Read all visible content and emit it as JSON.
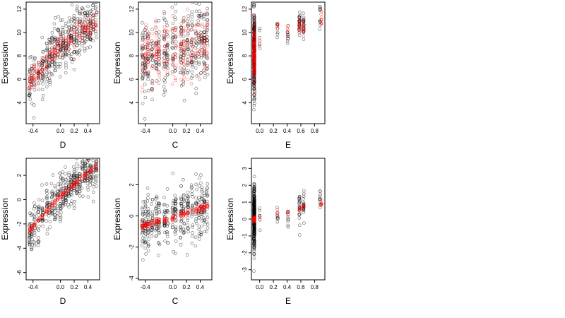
{
  "colors": {
    "observed": "#000000",
    "fitted": "#ff0000",
    "background": "#ffffff"
  },
  "chart_data": [
    {
      "type": "scatter",
      "row": "top",
      "xlabel": "D",
      "ylabel": "Expression",
      "xlim": [
        -0.5,
        0.57
      ],
      "ylim": [
        2.2,
        12.6
      ],
      "xticks": [
        {
          "v": -0.4,
          "l": "-0.4"
        },
        {
          "v": 0.0,
          "l": "0.0"
        },
        {
          "v": 0.2,
          "l": "0.2"
        },
        {
          "v": 0.4,
          "l": "0.4"
        }
      ],
      "yticks": [
        {
          "v": 4,
          "l": "4"
        },
        {
          "v": 6,
          "l": "6"
        },
        {
          "v": 8,
          "l": "8"
        },
        {
          "v": 10,
          "l": "10"
        },
        {
          "v": 12,
          "l": "12"
        }
      ],
      "x_clusters": [
        -0.45,
        -0.42,
        -0.38,
        -0.32,
        -0.26,
        -0.2,
        -0.16,
        -0.12,
        -0.08,
        -0.04,
        0.0,
        0.04,
        0.08,
        0.12,
        0.16,
        0.2,
        0.24,
        0.28,
        0.32,
        0.36,
        0.4,
        0.44,
        0.48,
        0.52
      ],
      "series": [
        {
          "role": "observed",
          "trend": [
            [
              -0.48,
              5.3
            ],
            [
              0.0,
              8.9
            ],
            [
              0.55,
              11.2
            ]
          ],
          "spread": 1.15,
          "count": 460
        },
        {
          "role": "fitted",
          "trend": [
            [
              -0.48,
              5.6
            ],
            [
              0.0,
              8.9
            ],
            [
              0.55,
              11.0
            ]
          ],
          "spread": 0.5,
          "count": 200
        }
      ]
    },
    {
      "type": "scatter",
      "row": "top",
      "xlabel": "C",
      "ylabel": "Expression",
      "xlim": [
        -0.5,
        0.57
      ],
      "ylim": [
        2.2,
        12.6
      ],
      "xticks": [
        {
          "v": -0.4,
          "l": "-0.4"
        },
        {
          "v": 0.0,
          "l": "0.0"
        },
        {
          "v": 0.2,
          "l": "0.2"
        },
        {
          "v": 0.4,
          "l": "0.4"
        }
      ],
      "yticks": [
        {
          "v": 4,
          "l": "4"
        },
        {
          "v": 6,
          "l": "6"
        },
        {
          "v": 8,
          "l": "8"
        },
        {
          "v": 10,
          "l": "10"
        },
        {
          "v": 12,
          "l": "12"
        }
      ],
      "x_clusters": [
        -0.44,
        -0.4,
        -0.36,
        -0.3,
        -0.24,
        -0.2,
        -0.12,
        -0.08,
        0.0,
        0.04,
        0.12,
        0.16,
        0.22,
        0.28,
        0.34,
        0.38,
        0.42,
        0.46,
        0.5
      ],
      "series": [
        {
          "role": "observed",
          "trend": [
            [
              -0.48,
              7.6
            ],
            [
              0.0,
              8.3
            ],
            [
              0.55,
              9.4
            ]
          ],
          "spread": 1.7,
          "count": 420
        },
        {
          "role": "fitted",
          "trend": [
            [
              -0.48,
              8.0
            ],
            [
              0.0,
              8.6
            ],
            [
              0.55,
              9.6
            ]
          ],
          "spread": 1.3,
          "count": 240
        }
      ]
    },
    {
      "type": "scatter",
      "row": "top",
      "xlabel": "E",
      "ylabel": "Expression",
      "xlim": [
        -0.12,
        0.95
      ],
      "ylim": [
        2.2,
        12.6
      ],
      "xticks": [
        {
          "v": 0.0,
          "l": "0.0"
        },
        {
          "v": 0.2,
          "l": "0.2"
        },
        {
          "v": 0.4,
          "l": "0.4"
        },
        {
          "v": 0.6,
          "l": "0.6"
        },
        {
          "v": 0.8,
          "l": "0.8"
        }
      ],
      "yticks": [
        {
          "v": 4,
          "l": "4"
        },
        {
          "v": 6,
          "l": "6"
        },
        {
          "v": 8,
          "l": "8"
        },
        {
          "v": 10,
          "l": "10"
        },
        {
          "v": 12,
          "l": "12"
        }
      ],
      "column_groups": [
        {
          "x": -0.08,
          "center": 8.3,
          "spread": 1.7,
          "count": 330,
          "role": "observed"
        },
        {
          "x": -0.08,
          "center": 8.2,
          "spread": 1.2,
          "count": 150,
          "role": "fitted"
        },
        {
          "x": 0.0,
          "center": 9.3,
          "spread": 0.5,
          "count": 6,
          "role": "observed"
        },
        {
          "x": 0.0,
          "center": 9.2,
          "spread": 0.3,
          "count": 3,
          "role": "fitted"
        },
        {
          "x": 0.26,
          "center": 10.4,
          "spread": 0.5,
          "count": 8,
          "role": "observed"
        },
        {
          "x": 0.26,
          "center": 10.4,
          "spread": 0.4,
          "count": 5,
          "role": "fitted"
        },
        {
          "x": 0.41,
          "center": 10.0,
          "spread": 0.7,
          "count": 10,
          "role": "observed"
        },
        {
          "x": 0.41,
          "center": 10.1,
          "spread": 0.4,
          "count": 5,
          "role": "fitted"
        },
        {
          "x": 0.58,
          "center": 10.6,
          "spread": 0.6,
          "count": 24,
          "role": "observed"
        },
        {
          "x": 0.58,
          "center": 10.6,
          "spread": 0.4,
          "count": 12,
          "role": "fitted"
        },
        {
          "x": 0.64,
          "center": 10.5,
          "spread": 0.6,
          "count": 22,
          "role": "observed"
        },
        {
          "x": 0.64,
          "center": 10.5,
          "spread": 0.4,
          "count": 12,
          "role": "fitted"
        },
        {
          "x": 0.88,
          "center": 11.3,
          "spread": 0.5,
          "count": 12,
          "role": "observed"
        },
        {
          "x": 0.9,
          "center": 11.2,
          "spread": 0.4,
          "count": 10,
          "role": "fitted"
        }
      ]
    },
    {
      "type": "scatter",
      "row": "bottom",
      "xlabel": "D",
      "ylabel": "Expression",
      "xlim": [
        -0.5,
        0.57
      ],
      "ylim": [
        -6.6,
        3.4
      ],
      "xticks": [
        {
          "v": -0.4,
          "l": "-0.4"
        },
        {
          "v": 0.0,
          "l": "0.0"
        },
        {
          "v": 0.2,
          "l": "0.2"
        },
        {
          "v": 0.4,
          "l": "0.4"
        }
      ],
      "yticks": [
        {
          "v": -6,
          "l": "-6"
        },
        {
          "v": -4,
          "l": "-4"
        },
        {
          "v": -2,
          "l": "-2"
        },
        {
          "v": 0,
          "l": "0"
        },
        {
          "v": 2,
          "l": "2"
        }
      ],
      "x_clusters": [
        -0.45,
        -0.42,
        -0.38,
        -0.32,
        -0.26,
        -0.2,
        -0.16,
        -0.12,
        -0.08,
        -0.04,
        0.0,
        0.04,
        0.08,
        0.12,
        0.16,
        0.2,
        0.24,
        0.28,
        0.32,
        0.36,
        0.4,
        0.44,
        0.48,
        0.52
      ],
      "series": [
        {
          "role": "observed",
          "trend": [
            [
              -0.48,
              -2.8
            ],
            [
              0.0,
              0.3
            ],
            [
              0.55,
              3.0
            ]
          ],
          "spread": 0.95,
          "count": 460
        },
        {
          "role": "fitted",
          "trend": [
            [
              -0.48,
              -2.7
            ],
            [
              0.0,
              0.3
            ],
            [
              0.55,
              2.9
            ]
          ],
          "spread": 0.12,
          "count": 170
        }
      ]
    },
    {
      "type": "scatter",
      "row": "bottom",
      "xlabel": "C",
      "ylabel": "Expression",
      "xlim": [
        -0.5,
        0.57
      ],
      "ylim": [
        -4.1,
        3.7
      ],
      "xticks": [
        {
          "v": -0.4,
          "l": "-0.4"
        },
        {
          "v": 0.0,
          "l": "0.0"
        },
        {
          "v": 0.2,
          "l": "0.2"
        },
        {
          "v": 0.4,
          "l": "0.4"
        }
      ],
      "yticks": [
        {
          "v": -4,
          "l": "-4"
        },
        {
          "v": -2,
          "l": "-2"
        },
        {
          "v": 0,
          "l": "0"
        },
        {
          "v": 2,
          "l": "2"
        }
      ],
      "x_clusters": [
        -0.44,
        -0.4,
        -0.36,
        -0.3,
        -0.24,
        -0.2,
        -0.12,
        -0.08,
        0.0,
        0.04,
        0.12,
        0.16,
        0.22,
        0.28,
        0.34,
        0.38,
        0.42,
        0.46,
        0.5
      ],
      "series": [
        {
          "role": "observed",
          "trend": [
            [
              -0.48,
              -0.7
            ],
            [
              0.0,
              0.0
            ],
            [
              0.55,
              0.6
            ]
          ],
          "spread": 0.95,
          "count": 420
        },
        {
          "role": "fitted",
          "trend": [
            [
              -0.48,
              -0.7
            ],
            [
              0.0,
              -0.1
            ],
            [
              0.55,
              0.7
            ]
          ],
          "spread": 0.1,
          "count": 180
        }
      ]
    },
    {
      "type": "scatter",
      "row": "bottom",
      "xlabel": "E",
      "ylabel": "Expression",
      "xlim": [
        -0.12,
        0.95
      ],
      "ylim": [
        -3.6,
        3.6
      ],
      "xticks": [
        {
          "v": 0.0,
          "l": "0.0"
        },
        {
          "v": 0.2,
          "l": "0.2"
        },
        {
          "v": 0.4,
          "l": "0.4"
        },
        {
          "v": 0.6,
          "l": "0.6"
        },
        {
          "v": 0.8,
          "l": "0.8"
        }
      ],
      "yticks": [
        {
          "v": -3,
          "l": "-3"
        },
        {
          "v": -2,
          "l": "-2"
        },
        {
          "v": -1,
          "l": "-1"
        },
        {
          "v": 0,
          "l": "0"
        },
        {
          "v": 1,
          "l": "1"
        },
        {
          "v": 2,
          "l": "2"
        },
        {
          "v": 3,
          "l": "3"
        }
      ],
      "column_groups": [
        {
          "x": -0.08,
          "center": 0.0,
          "spread": 0.9,
          "count": 330,
          "role": "observed"
        },
        {
          "x": -0.08,
          "center": 0.0,
          "spread": 0.06,
          "count": 60,
          "role": "fitted"
        },
        {
          "x": 0.0,
          "center": 0.0,
          "spread": 0.3,
          "count": 6,
          "role": "observed"
        },
        {
          "x": 0.0,
          "center": 0.0,
          "spread": 0.08,
          "count": 3,
          "role": "fitted"
        },
        {
          "x": 0.26,
          "center": 0.3,
          "spread": 0.25,
          "count": 8,
          "role": "observed"
        },
        {
          "x": 0.26,
          "center": 0.3,
          "spread": 0.1,
          "count": 4,
          "role": "fitted"
        },
        {
          "x": 0.41,
          "center": 0.1,
          "spread": 0.35,
          "count": 10,
          "role": "observed"
        },
        {
          "x": 0.41,
          "center": 0.35,
          "spread": 0.1,
          "count": 4,
          "role": "fitted"
        },
        {
          "x": 0.58,
          "center": 0.7,
          "spread": 0.5,
          "count": 22,
          "role": "observed"
        },
        {
          "x": 0.58,
          "center": 0.55,
          "spread": 0.12,
          "count": 8,
          "role": "fitted"
        },
        {
          "x": 0.64,
          "center": 0.8,
          "spread": 0.5,
          "count": 20,
          "role": "observed"
        },
        {
          "x": 0.64,
          "center": 0.7,
          "spread": 0.12,
          "count": 8,
          "role": "fitted"
        },
        {
          "x": 0.88,
          "center": 1.0,
          "spread": 0.5,
          "count": 12,
          "role": "observed"
        },
        {
          "x": 0.9,
          "center": 0.9,
          "spread": 0.12,
          "count": 8,
          "role": "fitted"
        }
      ]
    }
  ]
}
